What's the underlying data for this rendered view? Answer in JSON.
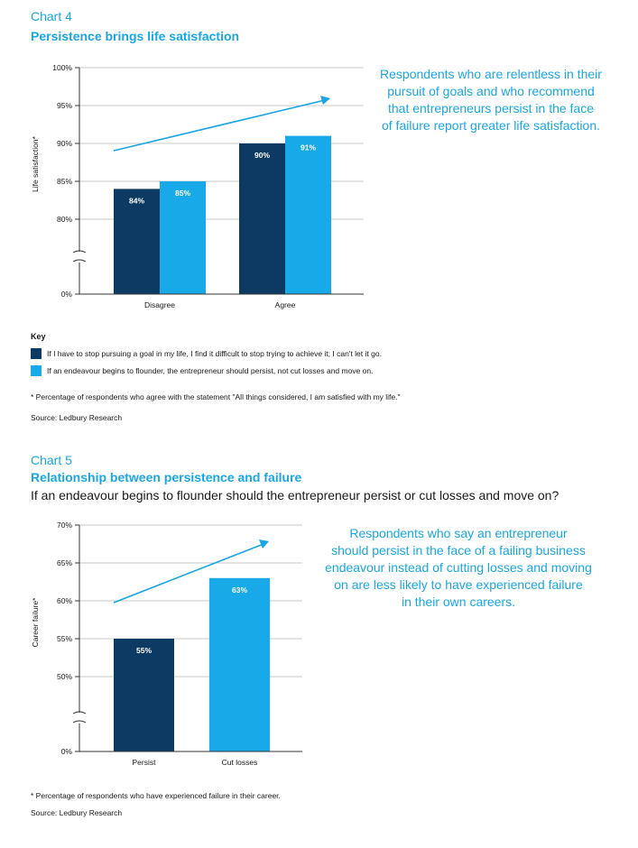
{
  "colors": {
    "dark": "#0c3a63",
    "light": "#17a9e8",
    "accent": "#1aa6e4",
    "grid": "#c8c8c8",
    "axis": "#333333"
  },
  "chart4": {
    "label": "Chart 4",
    "title": "Persistence brings life satisfaction",
    "callout": [
      "Respondents who are relentless in their",
      "pursuit of goals and who recommend",
      "that entrepreneurs persist in the face",
      "of failure report greater life satisfaction."
    ],
    "key_title": "Key",
    "key": [
      "If I have to stop pursuing a goal in my life, I find it difficult to stop trying to achieve it; I can't let it go.",
      "If an endeavour begins to flounder, the entrepreneur should persist, not cut losses and move on."
    ],
    "footnote": "* Percentage of respondents who agree with the statement \"All things considered, I am satisfied with my life.\"",
    "source": "Source: Ledbury Research"
  },
  "chart5": {
    "label": "Chart 5",
    "title": "Relationship between persistence and failure",
    "subtitle": "If an endeavour begins to flounder should the entrepreneur persist or cut losses and move on?",
    "callout": [
      "Respondents who say an entrepreneur",
      "should persist in the face of a failing business",
      "endeavour instead of cutting losses and moving",
      "on are less likely to have experienced failure",
      "in their own careers."
    ],
    "footnote": "* Percentage of respondents who have experienced failure in their career.",
    "source": "Source: Ledbury Research"
  },
  "chart_data": [
    {
      "type": "bar",
      "ylabel": "Life satisfaction*",
      "categories": [
        "Disagree",
        "Agree"
      ],
      "yticks": [
        "0%",
        "80%",
        "85%",
        "90%",
        "95%",
        "100%"
      ],
      "ylim": [
        80,
        100
      ],
      "axis_break": true,
      "grid": true,
      "series": [
        {
          "values": [
            84,
            90
          ],
          "labels": [
            "84%",
            "90%"
          ],
          "color": "#0c3a63"
        },
        {
          "values": [
            85,
            91
          ],
          "labels": [
            "85%",
            "91%"
          ],
          "color": "#17a9e8"
        }
      ]
    },
    {
      "type": "bar",
      "ylabel": "Career failure*",
      "categories": [
        "Persist",
        "Cut losses"
      ],
      "yticks": [
        "0%",
        "50%",
        "55%",
        "60%",
        "65%",
        "70%"
      ],
      "ylim": [
        50,
        70
      ],
      "axis_break": true,
      "grid": true,
      "series": [
        {
          "values": [
            55,
            63
          ],
          "labels": [
            "55%",
            "63%"
          ],
          "color": "#0c3a63"
        }
      ],
      "bar_colors": [
        "#0c3a63",
        "#17a9e8"
      ]
    }
  ]
}
